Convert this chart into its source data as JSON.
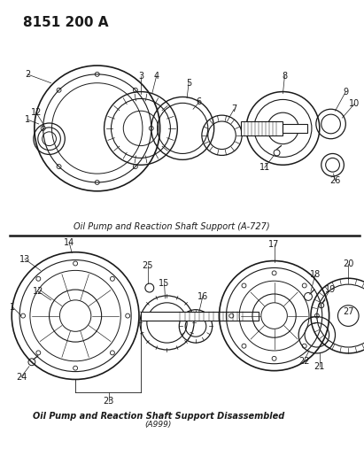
{
  "title": "8151 200 A",
  "caption_top": "Oil Pump and Reaction Shaft Support (A-727)",
  "caption_bottom": "Oil Pump and Reaction Shaft Support Disassembled",
  "caption_bottom2": "(A999)",
  "bg_color": "#ffffff",
  "line_color": "#1a1a1a",
  "text_color": "#1a1a1a",
  "title_fontsize": 11,
  "caption_fontsize": 7,
  "label_fontsize": 7
}
